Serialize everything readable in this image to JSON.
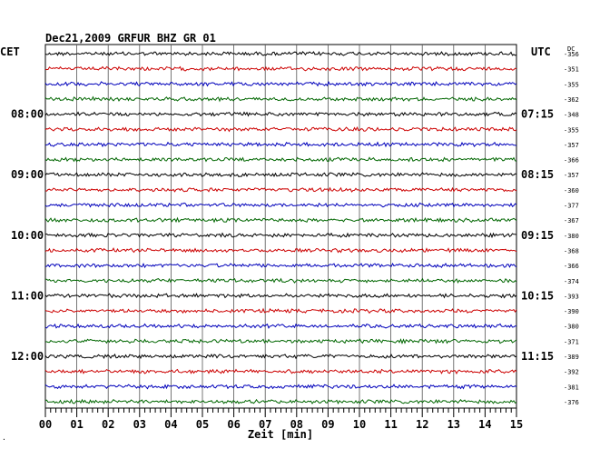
{
  "chart_data": {
    "type": "line",
    "title": "Dec21,2009   GRFUR BHZ GR 01",
    "xlabel": "Zeit [min]",
    "x_ticks": [
      "00",
      "01",
      "02",
      "03",
      "04",
      "05",
      "06",
      "07",
      "08",
      "09",
      "10",
      "11",
      "12",
      "13",
      "14",
      "15"
    ],
    "xlim": [
      0,
      15
    ],
    "left_axis_label": "CET",
    "right_axis_label": "UTC",
    "offset_header": "DC",
    "grid": true,
    "left_hour_labels": [
      "08:00",
      "09:00",
      "10:00",
      "11:00",
      "12:00"
    ],
    "right_hour_labels": [
      "07:15",
      "08:15",
      "09:15",
      "10:15",
      "11:15"
    ],
    "hour_label_rows": [
      4,
      8,
      12,
      16,
      20
    ],
    "trace_colors": [
      "#000000",
      "#cc0000",
      "#0000bb",
      "#006600"
    ],
    "trace_offsets": [
      -356,
      -351,
      -355,
      -362,
      -348,
      -355,
      -357,
      -366,
      -357,
      -360,
      -377,
      -367,
      -380,
      -368,
      -366,
      -374,
      -393,
      -390,
      -380,
      -371,
      -389,
      -392,
      -381,
      -376
    ],
    "corner_mark": "."
  }
}
